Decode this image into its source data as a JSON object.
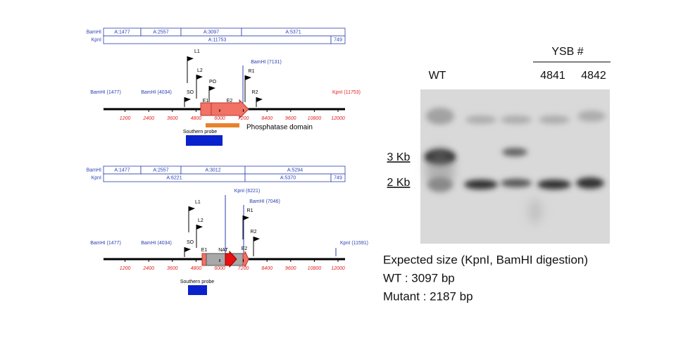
{
  "map_wt": {
    "table": [
      {
        "enzyme": "BamHI",
        "cells": [
          "A:1477",
          "A:2557",
          "A:3097",
          "A:5371"
        ]
      },
      {
        "enzyme": "KpnI",
        "cells": [
          "A:11753",
          "749"
        ]
      }
    ],
    "ticks": [
      1200,
      2400,
      3600,
      4800,
      6000,
      7200,
      8400,
      9600,
      10800,
      12000
    ],
    "sites": [
      "BamHI (1477)",
      "BamHI (4034)",
      "BamHI (7131)",
      "KpnI (11753)"
    ],
    "primers": [
      "L1",
      "L2",
      "PO",
      "SO",
      "R1",
      "R2"
    ],
    "features": [
      "E1",
      "E2"
    ],
    "domain": "Phosphatase domain",
    "probe": "Southern probe"
  },
  "map_mutant": {
    "table": [
      {
        "enzyme": "BamHI",
        "cells": [
          "A:1477",
          "A:2557",
          "A:3012",
          "A:5294"
        ]
      },
      {
        "enzyme": "KpnI",
        "cells": [
          "A:6221",
          "A:5370",
          "749"
        ]
      }
    ],
    "ticks": [
      1200,
      2400,
      3600,
      4800,
      6000,
      7200,
      8400,
      9600,
      10800,
      12000
    ],
    "sites": [
      "BamHI (1477)",
      "BamHI (4034)",
      "KpnI (6221)",
      "BamHI (7046)",
      "KpnI (11591)"
    ],
    "primers": [
      "L1",
      "L2",
      "SO",
      "R1",
      "R2"
    ],
    "features": [
      "E1",
      "NAT",
      "E2"
    ],
    "probe": "Southern probe"
  },
  "blot": {
    "group_label": "YSB #",
    "lanes": [
      "WT",
      "4841",
      "4842"
    ],
    "markers": [
      "3 Kb",
      "2 Kb"
    ]
  },
  "caption": [
    "Expected size (KpnI, BamHI digestion)",
    "WT : 3097 bp",
    "Mutant : 2187 bp"
  ]
}
